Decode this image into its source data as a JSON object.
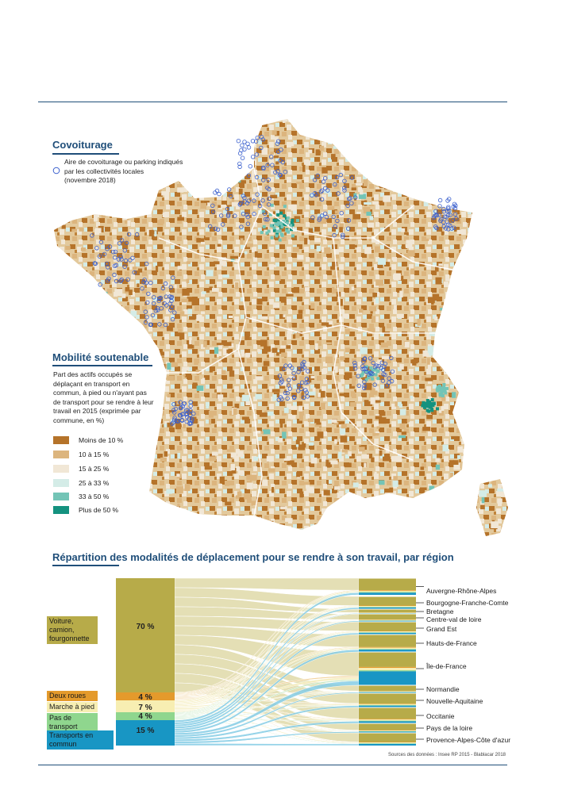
{
  "covoiturage": {
    "title": "Covoiturage",
    "legend_text": "Aire de covoiturage ou parking indiqués par les collectivités locales (novembre 2018)",
    "legend_lines": [
      "Aire de covoiturage ou parking indiqués",
      "par les collectivités locales",
      "(novembre 2018)"
    ],
    "marker_color": "#3a5fcd"
  },
  "mobilite": {
    "title": "Mobilité soutenable",
    "description_lines": [
      "Part des actifs occupés se",
      "déplaçant en transport en",
      "commun, à pied ou n'ayant pas",
      "de transport pour se rendre à leur",
      "travail en 2015 (exprimée par",
      "commune, en %)"
    ],
    "classes": [
      {
        "label": "Moins de 10 %",
        "color": "#b5732a"
      },
      {
        "label": "10 à 15 %",
        "color": "#dcb57e"
      },
      {
        "label": "15 à 25 %",
        "color": "#f1e7d6"
      },
      {
        "label": "25 à 33 %",
        "color": "#d4ece7"
      },
      {
        "label": "33 à 50 %",
        "color": "#73c4b6"
      },
      {
        "label": "Plus de 50 %",
        "color": "#14927f"
      }
    ]
  },
  "repartition": {
    "title": "Répartition des modalités de déplacement pour se rendre à son travail, par région",
    "modes": [
      {
        "label": "Voiture, camion, fourgonnette",
        "lines": [
          "Voiture, camion,",
          "fourgonnette"
        ],
        "percent": "70 %",
        "color": "#b7ab49",
        "flow": "#e2dcae"
      },
      {
        "label": "Deux roues",
        "percent": "4 %",
        "color": "#e49a2c",
        "flow": "#f2cf93"
      },
      {
        "label": "Marche à pied",
        "percent": "7 %",
        "color": "#f7eeb2",
        "flow": "#f6eebe"
      },
      {
        "label": "Pas de transport",
        "percent": "4 %",
        "color": "#8fd68e",
        "flow": "#bfe6bd"
      },
      {
        "label": "Transports en commun",
        "percent": "15 %",
        "color": "#1896c4",
        "flow": "#86cde6"
      }
    ],
    "regions": [
      "Auvergne-Rhône-Alpes",
      "Bourgogne-Franche-Comte",
      "Bretagne",
      "Centre-val de loire",
      "Grand Est",
      "Hauts-de-France",
      "Île-de-France",
      "Normandie",
      "Nouvelle-Aquitaine",
      "Occitanie",
      "Pays de la loire",
      "Provence-Alpes-Côte d'azur"
    ],
    "source": "Sources des données : Insee RP 2015 - Blablacar 2018"
  }
}
